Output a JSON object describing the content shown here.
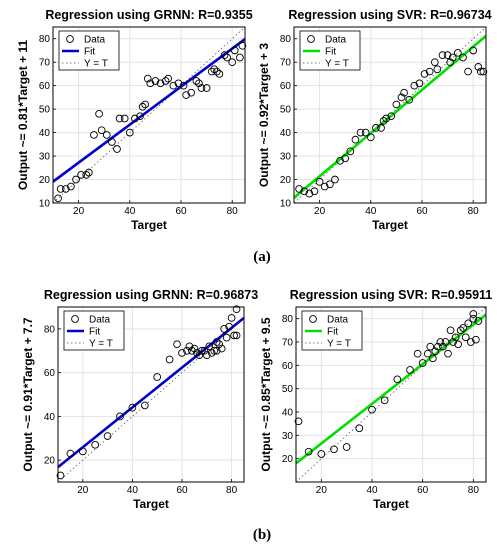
{
  "figure": {
    "panel_labels": [
      "(a)",
      "(b)"
    ]
  },
  "chart_data": [
    {
      "type": "scatter",
      "title": "Regression using GRNN: R=0.9355",
      "xlabel": "Target",
      "ylabel": "Output ~= 0.81*Target + 11",
      "xlim": [
        10,
        85
      ],
      "ylim": [
        10,
        85
      ],
      "xticks": [
        20,
        40,
        60,
        80
      ],
      "yticks": [
        10,
        20,
        30,
        40,
        50,
        60,
        70,
        80
      ],
      "grid": true,
      "legend": {
        "position": "top-left",
        "entries": [
          "Data",
          "Fit",
          "Y = T"
        ]
      },
      "fit_color": "#0000cd",
      "fit": {
        "slope": 0.81,
        "intercept": 11
      },
      "points": [
        [
          12,
          12
        ],
        [
          13,
          16
        ],
        [
          15,
          16
        ],
        [
          17,
          17
        ],
        [
          19,
          20
        ],
        [
          21,
          22
        ],
        [
          23,
          22
        ],
        [
          24,
          23
        ],
        [
          26,
          39
        ],
        [
          28,
          48
        ],
        [
          29,
          41
        ],
        [
          31,
          39
        ],
        [
          33,
          36
        ],
        [
          35,
          33
        ],
        [
          36,
          46
        ],
        [
          38,
          46
        ],
        [
          40,
          40
        ],
        [
          42,
          46
        ],
        [
          44,
          47
        ],
        [
          45,
          51
        ],
        [
          46,
          52
        ],
        [
          47,
          63
        ],
        [
          48,
          61
        ],
        [
          50,
          62
        ],
        [
          52,
          61
        ],
        [
          54,
          62
        ],
        [
          55,
          63
        ],
        [
          57,
          60
        ],
        [
          59,
          61
        ],
        [
          61,
          60
        ],
        [
          62,
          56
        ],
        [
          64,
          57
        ],
        [
          66,
          62
        ],
        [
          67,
          61
        ],
        [
          68,
          59
        ],
        [
          70,
          59
        ],
        [
          72,
          66
        ],
        [
          73,
          67
        ],
        [
          74,
          66
        ],
        [
          75,
          65
        ],
        [
          77,
          73
        ],
        [
          78,
          72
        ],
        [
          80,
          70
        ],
        [
          81,
          75
        ],
        [
          83,
          72
        ],
        [
          84,
          77
        ]
      ]
    },
    {
      "type": "scatter",
      "title": "Regression using SVR: R=0.96734",
      "xlabel": "Target",
      "ylabel": "Output ~= 0.92*Target + 3",
      "xlim": [
        10,
        85
      ],
      "ylim": [
        10,
        85
      ],
      "xticks": [
        20,
        40,
        60,
        80
      ],
      "yticks": [
        10,
        20,
        30,
        40,
        50,
        60,
        70,
        80
      ],
      "grid": true,
      "legend": {
        "position": "top-left",
        "entries": [
          "Data",
          "Fit",
          "Y = T"
        ]
      },
      "fit_color": "#00e000",
      "fit": {
        "slope": 0.92,
        "intercept": 3
      },
      "points": [
        [
          12,
          16
        ],
        [
          14,
          15
        ],
        [
          16,
          14
        ],
        [
          18,
          15
        ],
        [
          20,
          19
        ],
        [
          22,
          17
        ],
        [
          24,
          18
        ],
        [
          26,
          20
        ],
        [
          28,
          28
        ],
        [
          30,
          29
        ],
        [
          32,
          32
        ],
        [
          34,
          37
        ],
        [
          36,
          40
        ],
        [
          38,
          40
        ],
        [
          40,
          38
        ],
        [
          42,
          42
        ],
        [
          44,
          42
        ],
        [
          45,
          45
        ],
        [
          46,
          46
        ],
        [
          48,
          47
        ],
        [
          50,
          52
        ],
        [
          52,
          55
        ],
        [
          53,
          57
        ],
        [
          55,
          54
        ],
        [
          57,
          60
        ],
        [
          59,
          61
        ],
        [
          61,
          65
        ],
        [
          63,
          66
        ],
        [
          65,
          70
        ],
        [
          66,
          67
        ],
        [
          68,
          73
        ],
        [
          70,
          73
        ],
        [
          71,
          70
        ],
        [
          72,
          72
        ],
        [
          74,
          74
        ],
        [
          76,
          72
        ],
        [
          78,
          66
        ],
        [
          80,
          75
        ],
        [
          82,
          68
        ],
        [
          83,
          66
        ],
        [
          84,
          66
        ]
      ]
    },
    {
      "type": "scatter",
      "title": "Regression using GRNN: R=0.96873",
      "xlabel": "Target",
      "ylabel": "Output ~= 0.91*Target + 7.7",
      "xlim": [
        10,
        85
      ],
      "ylim": [
        10,
        90
      ],
      "xticks": [
        20,
        40,
        60,
        80
      ],
      "yticks": [
        20,
        40,
        60,
        80
      ],
      "grid": true,
      "legend": {
        "position": "top-left",
        "entries": [
          "Data",
          "Fit",
          "Y = T"
        ]
      },
      "fit_color": "#0000cd",
      "fit": {
        "slope": 0.91,
        "intercept": 7.7
      },
      "points": [
        [
          11,
          13
        ],
        [
          15,
          23
        ],
        [
          20,
          24
        ],
        [
          25,
          27
        ],
        [
          30,
          31
        ],
        [
          35,
          40
        ],
        [
          40,
          44
        ],
        [
          45,
          45
        ],
        [
          50,
          58
        ],
        [
          55,
          66
        ],
        [
          58,
          73
        ],
        [
          60,
          69
        ],
        [
          62,
          70
        ],
        [
          63,
          72
        ],
        [
          64,
          70
        ],
        [
          65,
          71
        ],
        [
          66,
          69
        ],
        [
          67,
          68
        ],
        [
          68,
          70
        ],
        [
          69,
          70
        ],
        [
          70,
          68
        ],
        [
          71,
          72
        ],
        [
          72,
          69
        ],
        [
          73,
          70
        ],
        [
          74,
          74
        ],
        [
          74,
          70
        ],
        [
          75,
          73
        ],
        [
          76,
          71
        ],
        [
          77,
          80
        ],
        [
          78,
          76
        ],
        [
          79,
          81
        ],
        [
          80,
          85
        ],
        [
          81,
          77
        ],
        [
          82,
          77
        ],
        [
          82,
          89
        ]
      ]
    },
    {
      "type": "scatter",
      "title": "Regression using SVR: R=0.95911",
      "xlabel": "Target",
      "ylabel": "Output ~= 0.85*Target + 9.5",
      "xlim": [
        10,
        85
      ],
      "ylim": [
        10,
        85
      ],
      "xticks": [
        20,
        40,
        60,
        80
      ],
      "yticks": [
        20,
        30,
        40,
        50,
        60,
        70,
        80
      ],
      "grid": true,
      "legend": {
        "position": "top-left",
        "entries": [
          "Data",
          "Fit",
          "Y = T"
        ]
      },
      "fit_color": "#00e000",
      "fit": {
        "slope": 0.85,
        "intercept": 9.5
      },
      "points": [
        [
          11,
          36
        ],
        [
          15,
          23
        ],
        [
          20,
          22
        ],
        [
          25,
          24
        ],
        [
          30,
          25
        ],
        [
          35,
          33
        ],
        [
          40,
          41
        ],
        [
          45,
          45
        ],
        [
          50,
          54
        ],
        [
          55,
          58
        ],
        [
          58,
          65
        ],
        [
          60,
          61
        ],
        [
          62,
          65
        ],
        [
          63,
          68
        ],
        [
          64,
          63
        ],
        [
          65,
          66
        ],
        [
          66,
          68
        ],
        [
          67,
          70
        ],
        [
          68,
          68
        ],
        [
          69,
          70
        ],
        [
          70,
          65
        ],
        [
          71,
          75
        ],
        [
          72,
          70
        ],
        [
          73,
          72
        ],
        [
          74,
          69
        ],
        [
          75,
          75
        ],
        [
          76,
          76
        ],
        [
          77,
          72
        ],
        [
          78,
          78
        ],
        [
          79,
          70
        ],
        [
          80,
          80
        ],
        [
          80,
          82
        ],
        [
          81,
          71
        ],
        [
          82,
          79
        ]
      ]
    }
  ]
}
